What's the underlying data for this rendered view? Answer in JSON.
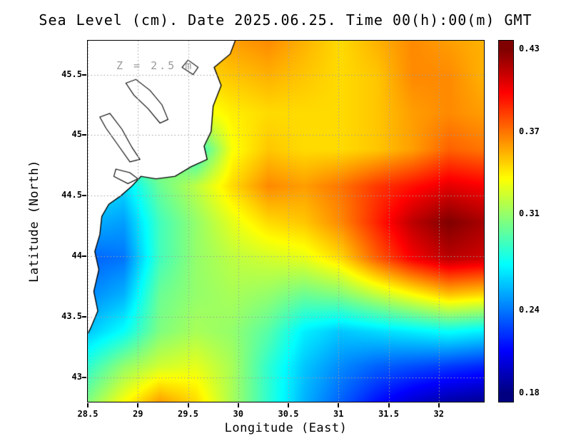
{
  "chart_data": {
    "type": "heatmap",
    "title": "Sea Level (cm). Date 2025.06.25. Time 00(h):00(m) GMT",
    "annotation": "Z = 2.5 m",
    "xlabel": "Longitude (East)",
    "ylabel": "Latitude (North)",
    "xlim": [
      28.5,
      32.45
    ],
    "ylim": [
      42.8,
      45.78
    ],
    "grid_lines": true,
    "grid_line_color": "#a0a0a0",
    "land_color": "#ffffff",
    "coast_color": "#000000",
    "x_ticks": [
      {
        "value": 28.5,
        "label": "28.5"
      },
      {
        "value": 29.0,
        "label": "29"
      },
      {
        "value": 29.5,
        "label": "29.5"
      },
      {
        "value": 30.0,
        "label": "30"
      },
      {
        "value": 30.5,
        "label": "30.5"
      },
      {
        "value": 31.0,
        "label": "31"
      },
      {
        "value": 31.5,
        "label": "31.5"
      },
      {
        "value": 32.0,
        "label": "32"
      }
    ],
    "y_ticks": [
      {
        "value": 43.0,
        "label": "43"
      },
      {
        "value": 43.5,
        "label": "43.5"
      },
      {
        "value": 44.0,
        "label": "44"
      },
      {
        "value": 44.5,
        "label": "44.5"
      },
      {
        "value": 45.0,
        "label": "45"
      },
      {
        "value": 45.5,
        "label": "45.5"
      }
    ],
    "colorbar": {
      "min": 0.18,
      "max": 0.43,
      "colormap": "jet",
      "ticks": [
        {
          "value": 0.43,
          "label": "0.43"
        },
        {
          "value": 0.37,
          "label": "0.37"
        },
        {
          "value": 0.31,
          "label": "0.31"
        },
        {
          "value": 0.24,
          "label": "0.24"
        },
        {
          "value": 0.18,
          "label": "0.18"
        }
      ]
    },
    "grid": {
      "lons": [
        28.5,
        28.86,
        29.22,
        29.58,
        29.94,
        30.3,
        30.66,
        31.02,
        31.38,
        31.74,
        32.1,
        32.45
      ],
      "lats": [
        45.78,
        45.48,
        45.18,
        44.88,
        44.58,
        44.28,
        43.98,
        43.68,
        43.38,
        43.09,
        42.8
      ],
      "values": [
        [
          0.34,
          0.34,
          0.345,
          0.35,
          0.36,
          0.365,
          0.355,
          0.345,
          0.355,
          0.365,
          0.36,
          0.355
        ],
        [
          0.335,
          0.335,
          0.34,
          0.345,
          0.35,
          0.355,
          0.35,
          0.345,
          0.35,
          0.365,
          0.365,
          0.355
        ],
        [
          0.33,
          0.33,
          0.335,
          0.33,
          0.34,
          0.345,
          0.345,
          0.345,
          0.35,
          0.36,
          0.365,
          0.36
        ],
        [
          0.31,
          0.31,
          0.315,
          0.28,
          0.335,
          0.35,
          0.345,
          0.345,
          0.35,
          0.36,
          0.375,
          0.37
        ],
        [
          0.27,
          0.265,
          0.3,
          0.32,
          0.345,
          0.365,
          0.36,
          0.37,
          0.385,
          0.395,
          0.405,
          0.4
        ],
        [
          0.255,
          0.25,
          0.29,
          0.31,
          0.33,
          0.345,
          0.35,
          0.365,
          0.39,
          0.415,
          0.43,
          0.42
        ],
        [
          0.235,
          0.24,
          0.29,
          0.31,
          0.32,
          0.325,
          0.33,
          0.345,
          0.375,
          0.4,
          0.415,
          0.41
        ],
        [
          0.245,
          0.255,
          0.3,
          0.31,
          0.315,
          0.31,
          0.3,
          0.305,
          0.32,
          0.335,
          0.35,
          0.345
        ],
        [
          0.26,
          0.275,
          0.305,
          0.315,
          0.31,
          0.295,
          0.27,
          0.26,
          0.265,
          0.27,
          0.275,
          0.27
        ],
        [
          0.285,
          0.31,
          0.325,
          0.33,
          0.315,
          0.285,
          0.26,
          0.245,
          0.235,
          0.23,
          0.225,
          0.22
        ],
        [
          0.305,
          0.335,
          0.36,
          0.345,
          0.315,
          0.285,
          0.255,
          0.235,
          0.215,
          0.2,
          0.19,
          0.185
        ]
      ]
    },
    "coastline": [
      [
        29.97,
        45.78
      ],
      [
        29.92,
        45.67
      ],
      [
        29.76,
        45.56
      ],
      [
        29.83,
        45.41
      ],
      [
        29.75,
        45.24
      ],
      [
        29.73,
        45.03
      ],
      [
        29.66,
        44.91
      ],
      [
        29.69,
        44.8
      ],
      [
        29.53,
        44.74
      ],
      [
        29.37,
        44.66
      ],
      [
        29.18,
        44.64
      ],
      [
        29.03,
        44.66
      ],
      [
        28.94,
        44.58
      ],
      [
        28.83,
        44.5
      ],
      [
        28.71,
        44.43
      ],
      [
        28.64,
        44.33
      ],
      [
        28.62,
        44.18
      ],
      [
        28.57,
        44.04
      ],
      [
        28.61,
        43.89
      ],
      [
        28.56,
        43.71
      ],
      [
        28.6,
        43.55
      ],
      [
        28.53,
        43.41
      ],
      [
        28.5,
        43.36
      ]
    ],
    "lakes": [
      [
        [
          28.98,
          45.46
        ],
        [
          29.12,
          45.37
        ],
        [
          29.24,
          45.25
        ],
        [
          29.3,
          45.13
        ],
        [
          29.22,
          45.1
        ],
        [
          29.1,
          45.22
        ],
        [
          28.96,
          45.33
        ],
        [
          28.88,
          45.43
        ]
      ],
      [
        [
          28.72,
          45.18
        ],
        [
          28.84,
          45.05
        ],
        [
          28.94,
          44.9
        ],
        [
          29.02,
          44.8
        ],
        [
          28.92,
          44.78
        ],
        [
          28.8,
          44.92
        ],
        [
          28.68,
          45.06
        ],
        [
          28.62,
          45.15
        ]
      ],
      [
        [
          29.5,
          45.62
        ],
        [
          29.6,
          45.56
        ],
        [
          29.55,
          45.5
        ],
        [
          29.44,
          45.56
        ]
      ],
      [
        [
          28.78,
          44.72
        ],
        [
          28.92,
          44.69
        ],
        [
          29.0,
          44.64
        ],
        [
          28.9,
          44.6
        ],
        [
          28.76,
          44.66
        ]
      ]
    ]
  }
}
